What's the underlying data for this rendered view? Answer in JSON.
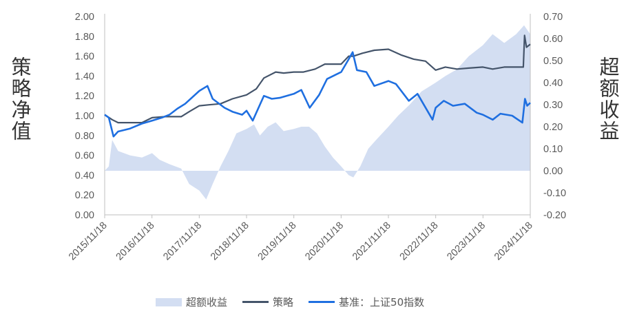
{
  "chart_data": {
    "type": "line",
    "ylabel": "策略净值",
    "ylabel_right": "超额收益",
    "ylim": [
      0,
      2.0
    ],
    "ylim_right": [
      -0.2,
      0.7
    ],
    "yticks_left": [
      "2.00",
      "1.80",
      "1.60",
      "1.40",
      "1.20",
      "1.00",
      "0.80",
      "0.60",
      "0.40",
      "0.20",
      "0.00"
    ],
    "yticks_right": [
      "0.70",
      "0.60",
      "0.50",
      "0.40",
      "0.30",
      "0.20",
      "0.10",
      "0.00",
      "-0.10",
      "-0.20"
    ],
    "xticks": [
      "2015/11/18",
      "2016/11/18",
      "2017/11/18",
      "2018/11/18",
      "2019/11/18",
      "2020/11/18",
      "2021/11/18",
      "2022/11/18",
      "2023/11/18",
      "2024/11/18"
    ],
    "x_range": [
      "2015-11-18",
      "2024-11-18"
    ],
    "legend_position": "bottom",
    "series": [
      {
        "name": "超额收益",
        "kind": "area",
        "axis": "right",
        "color": "#d3def2",
        "points": [
          [
            "2015-11-18",
            0.0
          ],
          [
            "2015-12-20",
            0.02
          ],
          [
            "2016-01-15",
            0.14
          ],
          [
            "2016-03-01",
            0.09
          ],
          [
            "2016-06-01",
            0.07
          ],
          [
            "2016-09-01",
            0.06
          ],
          [
            "2016-11-18",
            0.08
          ],
          [
            "2017-01-15",
            0.05
          ],
          [
            "2017-04-01",
            0.03
          ],
          [
            "2017-07-01",
            0.01
          ],
          [
            "2017-09-01",
            -0.06
          ],
          [
            "2017-11-18",
            -0.09
          ],
          [
            "2018-01-10",
            -0.13
          ],
          [
            "2018-03-01",
            -0.06
          ],
          [
            "2018-05-01",
            0.02
          ],
          [
            "2018-07-01",
            0.09
          ],
          [
            "2018-09-01",
            0.17
          ],
          [
            "2018-11-18",
            0.19
          ],
          [
            "2019-01-15",
            0.21
          ],
          [
            "2019-03-01",
            0.16
          ],
          [
            "2019-05-01",
            0.2
          ],
          [
            "2019-07-01",
            0.22
          ],
          [
            "2019-09-01",
            0.18
          ],
          [
            "2019-11-18",
            0.19
          ],
          [
            "2020-01-15",
            0.2
          ],
          [
            "2020-03-15",
            0.2
          ],
          [
            "2020-05-15",
            0.17
          ],
          [
            "2020-07-15",
            0.11
          ],
          [
            "2020-09-15",
            0.06
          ],
          [
            "2020-11-18",
            0.02
          ],
          [
            "2021-01-15",
            -0.02
          ],
          [
            "2021-02-20",
            -0.03
          ],
          [
            "2021-04-15",
            0.02
          ],
          [
            "2021-06-15",
            0.1
          ],
          [
            "2021-08-15",
            0.14
          ],
          [
            "2021-11-18",
            0.2
          ],
          [
            "2022-02-01",
            0.25
          ],
          [
            "2022-05-01",
            0.3
          ],
          [
            "2022-08-01",
            0.36
          ],
          [
            "2022-11-18",
            0.4
          ],
          [
            "2023-02-01",
            0.43
          ],
          [
            "2023-05-01",
            0.46
          ],
          [
            "2023-08-01",
            0.52
          ],
          [
            "2023-11-18",
            0.57
          ],
          [
            "2024-02-01",
            0.62
          ],
          [
            "2024-05-01",
            0.58
          ],
          [
            "2024-08-01",
            0.62
          ],
          [
            "2024-10-01",
            0.66
          ],
          [
            "2024-11-18",
            0.62
          ]
        ]
      },
      {
        "name": "策略",
        "kind": "line",
        "axis": "left",
        "color": "#44546a",
        "points": [
          [
            "2015-11-18",
            1.01
          ],
          [
            "2016-01-15",
            0.96
          ],
          [
            "2016-03-01",
            0.93
          ],
          [
            "2016-06-01",
            0.93
          ],
          [
            "2016-09-01",
            0.93
          ],
          [
            "2016-11-18",
            0.98
          ],
          [
            "2017-03-01",
            0.99
          ],
          [
            "2017-07-01",
            0.99
          ],
          [
            "2017-09-01",
            1.04
          ],
          [
            "2017-11-18",
            1.1
          ],
          [
            "2018-02-01",
            1.11
          ],
          [
            "2018-05-01",
            1.12
          ],
          [
            "2018-08-01",
            1.17
          ],
          [
            "2018-11-18",
            1.21
          ],
          [
            "2019-02-01",
            1.27
          ],
          [
            "2019-04-01",
            1.38
          ],
          [
            "2019-07-01",
            1.44
          ],
          [
            "2019-09-01",
            1.43
          ],
          [
            "2019-11-18",
            1.44
          ],
          [
            "2020-02-01",
            1.44
          ],
          [
            "2020-05-01",
            1.47
          ],
          [
            "2020-07-15",
            1.52
          ],
          [
            "2020-11-18",
            1.52
          ],
          [
            "2021-01-15",
            1.6
          ],
          [
            "2021-02-20",
            1.6
          ],
          [
            "2021-05-01",
            1.63
          ],
          [
            "2021-08-01",
            1.66
          ],
          [
            "2021-11-18",
            1.67
          ],
          [
            "2022-03-01",
            1.61
          ],
          [
            "2022-06-01",
            1.57
          ],
          [
            "2022-09-01",
            1.55
          ],
          [
            "2022-11-18",
            1.46
          ],
          [
            "2023-02-01",
            1.49
          ],
          [
            "2023-05-01",
            1.47
          ],
          [
            "2023-08-01",
            1.48
          ],
          [
            "2023-11-18",
            1.49
          ],
          [
            "2024-02-01",
            1.47
          ],
          [
            "2024-05-01",
            1.49
          ],
          [
            "2024-08-01",
            1.49
          ],
          [
            "2024-09-25",
            1.49
          ],
          [
            "2024-10-05",
            1.81
          ],
          [
            "2024-10-20",
            1.69
          ],
          [
            "2024-11-18",
            1.72
          ]
        ]
      },
      {
        "name": "基准：上证50指数",
        "kind": "line",
        "axis": "left",
        "color": "#1f6fe0",
        "points": [
          [
            "2015-11-18",
            1.01
          ],
          [
            "2015-12-20",
            0.98
          ],
          [
            "2016-01-25",
            0.79
          ],
          [
            "2016-03-01",
            0.84
          ],
          [
            "2016-06-01",
            0.87
          ],
          [
            "2016-09-01",
            0.92
          ],
          [
            "2016-11-18",
            0.95
          ],
          [
            "2017-02-01",
            0.98
          ],
          [
            "2017-04-01",
            1.01
          ],
          [
            "2017-06-01",
            1.07
          ],
          [
            "2017-08-01",
            1.12
          ],
          [
            "2017-11-18",
            1.25
          ],
          [
            "2018-01-20",
            1.3
          ],
          [
            "2018-03-01",
            1.17
          ],
          [
            "2018-06-01",
            1.08
          ],
          [
            "2018-08-01",
            1.04
          ],
          [
            "2018-10-15",
            1.01
          ],
          [
            "2018-11-18",
            1.05
          ],
          [
            "2019-01-05",
            0.95
          ],
          [
            "2019-04-01",
            1.2
          ],
          [
            "2019-06-01",
            1.17
          ],
          [
            "2019-08-01",
            1.18
          ],
          [
            "2019-11-18",
            1.22
          ],
          [
            "2020-01-15",
            1.26
          ],
          [
            "2020-03-20",
            1.08
          ],
          [
            "2020-06-01",
            1.21
          ],
          [
            "2020-08-01",
            1.37
          ],
          [
            "2020-11-18",
            1.44
          ],
          [
            "2021-01-20",
            1.58
          ],
          [
            "2021-02-15",
            1.64
          ],
          [
            "2021-03-20",
            1.46
          ],
          [
            "2021-06-01",
            1.44
          ],
          [
            "2021-08-01",
            1.3
          ],
          [
            "2021-11-18",
            1.35
          ],
          [
            "2022-01-15",
            1.32
          ],
          [
            "2022-04-25",
            1.15
          ],
          [
            "2022-07-01",
            1.22
          ],
          [
            "2022-10-25",
            0.96
          ],
          [
            "2022-11-18",
            1.08
          ],
          [
            "2023-01-20",
            1.15
          ],
          [
            "2023-04-01",
            1.1
          ],
          [
            "2023-07-01",
            1.12
          ],
          [
            "2023-10-01",
            1.03
          ],
          [
            "2023-11-18",
            1.01
          ],
          [
            "2024-02-02",
            0.96
          ],
          [
            "2024-04-01",
            1.02
          ],
          [
            "2024-07-01",
            1.0
          ],
          [
            "2024-09-18",
            0.93
          ],
          [
            "2024-10-08",
            1.17
          ],
          [
            "2024-10-25",
            1.1
          ],
          [
            "2024-11-18",
            1.13
          ]
        ]
      }
    ]
  }
}
